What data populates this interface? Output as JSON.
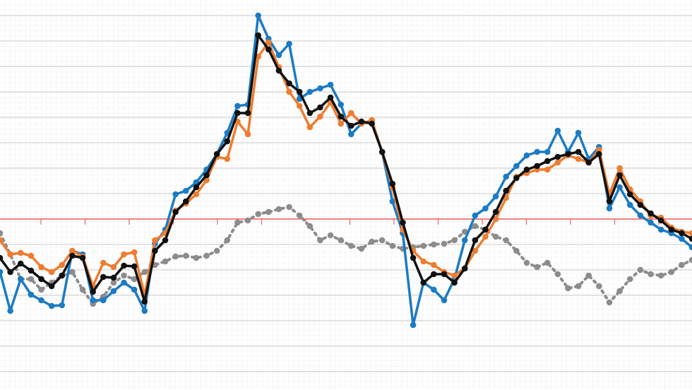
{
  "chart_data": {
    "type": "line",
    "x": [
      0,
      1,
      2,
      3,
      4,
      5,
      6,
      7,
      8,
      9,
      10,
      11,
      12,
      13,
      14,
      15,
      16,
      17,
      18,
      19,
      20,
      21,
      22,
      23,
      24,
      25,
      26,
      27,
      28,
      29,
      30,
      31,
      32,
      33,
      34,
      35,
      36,
      37,
      38,
      39,
      40,
      41,
      42,
      43,
      44,
      45,
      46,
      47,
      48,
      49,
      50,
      51,
      52,
      53,
      54,
      55,
      56,
      57,
      58,
      59,
      60,
      61,
      62,
      63,
      64,
      65,
      66,
      67
    ],
    "xlim": [
      0,
      67
    ],
    "ylim": [
      -242,
      310
    ],
    "yticks": [
      -216,
      -180,
      -144,
      -108,
      -72,
      -36,
      0,
      36,
      72,
      108,
      144,
      180,
      216,
      252,
      288
    ],
    "grid": true,
    "hline": {
      "value": 0,
      "color": "#f25a5a"
    },
    "series": [
      {
        "color": "#8c8c8c",
        "dashed": true,
        "values": [
          -20,
          -50,
          -85,
          -85,
          -100,
          -90,
          -80,
          -75,
          -100,
          -120,
          -110,
          -90,
          -80,
          -85,
          -75,
          -65,
          -60,
          -53,
          -52,
          -55,
          -52,
          -45,
          -30,
          -5,
          -2,
          7,
          10,
          14,
          17,
          5,
          -10,
          -30,
          -23,
          -30,
          -38,
          -42,
          -32,
          -30,
          -38,
          -42,
          -40,
          -38,
          -36,
          -35,
          -30,
          -18,
          -10,
          -15,
          -25,
          -30,
          -45,
          -62,
          -68,
          -62,
          -78,
          -98,
          -95,
          -80,
          -95,
          -118,
          -102,
          -85,
          -72,
          -78,
          -80,
          -75,
          -65,
          -58
        ]
      },
      {
        "color": "#1b7bc4",
        "values": [
          -75,
          -130,
          -85,
          -107,
          -115,
          -123,
          -122,
          -45,
          -50,
          -115,
          -115,
          -102,
          -90,
          -100,
          -130,
          -35,
          -15,
          35,
          40,
          52,
          70,
          92,
          122,
          160,
          162,
          288,
          255,
          232,
          248,
          170,
          180,
          185,
          190,
          162,
          120,
          135,
          138,
          95,
          25,
          -20,
          -150,
          -90,
          -100,
          -115,
          -85,
          -30,
          5,
          15,
          32,
          60,
          75,
          90,
          95,
          95,
          125,
          95,
          122,
          85,
          102,
          15,
          45,
          20,
          5,
          -5,
          -15,
          -20,
          -28,
          -40
        ]
      },
      {
        "color": "#ed7d31",
        "values": [
          -30,
          -50,
          -48,
          -52,
          -68,
          -75,
          -65,
          -45,
          -53,
          -95,
          -62,
          -68,
          -50,
          -47,
          -108,
          -30,
          -20,
          12,
          22,
          35,
          55,
          88,
          85,
          138,
          120,
          230,
          250,
          215,
          180,
          160,
          130,
          145,
          165,
          135,
          150,
          135,
          140,
          95,
          45,
          -15,
          -45,
          -60,
          -65,
          -75,
          -80,
          -70,
          -45,
          -25,
          0,
          30,
          60,
          65,
          70,
          70,
          80,
          90,
          85,
          80,
          98,
          35,
          72,
          42,
          25,
          5,
          2,
          -12,
          -18,
          -20
        ]
      },
      {
        "color": "#111111",
        "values": [
          -55,
          -75,
          -63,
          -73,
          -85,
          -95,
          -80,
          -52,
          -55,
          -103,
          -82,
          -83,
          -66,
          -67,
          -117,
          -45,
          -30,
          10,
          25,
          45,
          62,
          92,
          110,
          150,
          150,
          260,
          240,
          210,
          192,
          180,
          150,
          158,
          172,
          145,
          132,
          138,
          135,
          95,
          50,
          -5,
          -55,
          -90,
          -78,
          -78,
          -90,
          -70,
          -30,
          -15,
          10,
          40,
          58,
          70,
          75,
          82,
          88,
          92,
          95,
          80,
          92,
          25,
          62,
          35,
          20,
          8,
          -2,
          -15,
          -20,
          -28
        ]
      }
    ]
  }
}
